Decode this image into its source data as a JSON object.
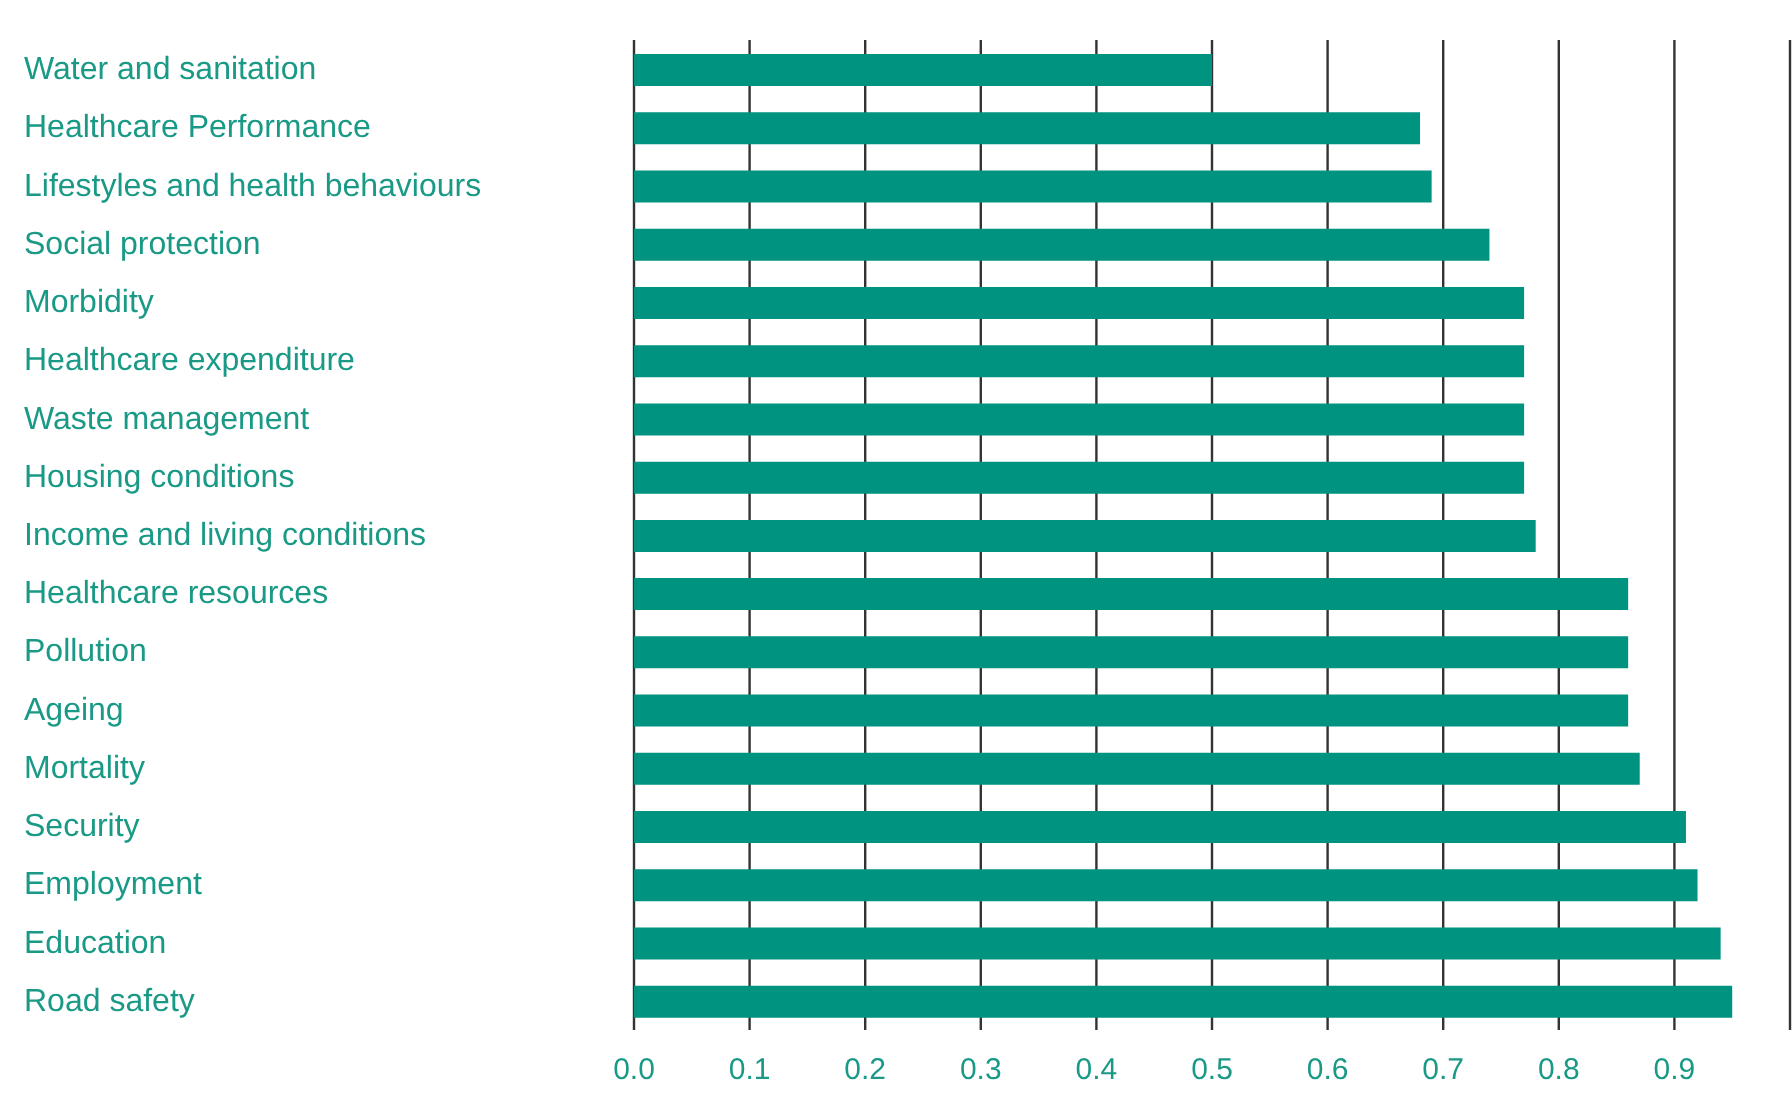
{
  "chart_data": {
    "type": "bar",
    "orientation": "horizontal",
    "categories": [
      "Water and sanitation",
      "Healthcare Performance",
      "Lifestyles and health behaviours",
      "Social protection",
      "Morbidity",
      "Healthcare expenditure",
      "Waste management",
      "Housing conditions",
      "Income and living conditions",
      "Healthcare resources",
      "Pollution",
      "Ageing",
      "Mortality",
      "Security",
      "Employment",
      "Education",
      "Road safety"
    ],
    "values": [
      0.5,
      0.68,
      0.69,
      0.74,
      0.77,
      0.77,
      0.77,
      0.77,
      0.78,
      0.86,
      0.86,
      0.86,
      0.87,
      0.91,
      0.92,
      0.94,
      0.95
    ],
    "color": "#00937f",
    "xlim": [
      0,
      1
    ],
    "xticks": [
      {
        "value": 0,
        "label": "0.0"
      },
      {
        "value": 0.1,
        "label": "0.1"
      },
      {
        "value": 0.2,
        "label": "0.2"
      },
      {
        "value": 0.3,
        "label": "0.3"
      },
      {
        "value": 0.4,
        "label": "0.4"
      },
      {
        "value": 0.5,
        "label": "0.5"
      },
      {
        "value": 0.6,
        "label": "0.6"
      },
      {
        "value": 0.7,
        "label": "0.7"
      },
      {
        "value": 0.8,
        "label": "0.8"
      },
      {
        "value": 0.9,
        "label": "0.9"
      },
      {
        "value": 1,
        "label": null
      }
    ],
    "grid": "x",
    "legend": false
  }
}
